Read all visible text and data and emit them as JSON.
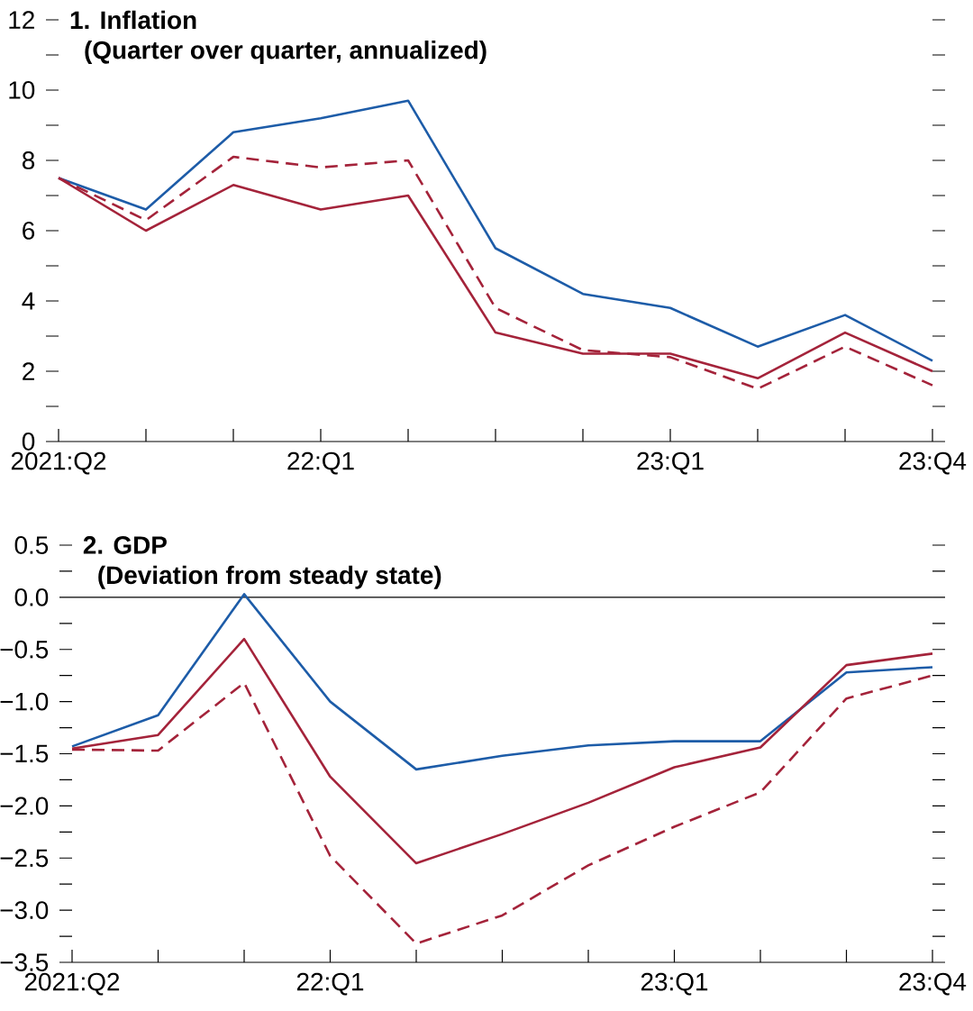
{
  "chart_data": [
    {
      "type": "line",
      "title": "1. Inflation",
      "subtitle": "(Quarter over quarter, annualized)",
      "categories": [
        "2021:Q2",
        null,
        null,
        "22:Q1",
        null,
        null,
        null,
        "23:Q1",
        null,
        null,
        "23:Q4"
      ],
      "series": [
        {
          "color": "#1d5ca8",
          "line_style": "solid",
          "values": [
            7.5,
            6.6,
            8.8,
            9.2,
            9.7,
            5.5,
            4.2,
            3.8,
            2.7,
            3.6,
            2.3
          ]
        },
        {
          "color": "#a4233a",
          "line_style": "solid",
          "values": [
            7.5,
            6.0,
            7.3,
            6.6,
            7.0,
            3.1,
            2.5,
            2.5,
            1.8,
            3.1,
            2.0
          ]
        },
        {
          "color": "#a4233a",
          "line_style": "dashed",
          "values": [
            7.5,
            6.3,
            8.1,
            7.8,
            8.0,
            3.8,
            2.6,
            2.4,
            1.5,
            2.7,
            1.6
          ]
        }
      ],
      "ylim": [
        0,
        12
      ],
      "yticks": [
        0,
        {
          "value": 1,
          "label": null
        },
        2,
        {
          "value": 3,
          "label": null
        },
        4,
        {
          "value": 5,
          "label": null
        },
        6,
        {
          "value": 7,
          "label": null
        },
        8,
        {
          "value": 9,
          "label": null
        },
        10,
        {
          "value": 11,
          "label": null
        },
        12
      ]
    },
    {
      "type": "line",
      "title": "2. GDP",
      "subtitle": "(Deviation from steady state)",
      "categories": [
        "2021:Q2",
        null,
        null,
        "22:Q1",
        null,
        null,
        null,
        "23:Q1",
        null,
        null,
        "23:Q4"
      ],
      "series": [
        {
          "color": "#1d5ca8",
          "line_style": "solid",
          "values": [
            -1.43,
            -1.13,
            0.03,
            -1.0,
            -1.65,
            -1.52,
            -1.42,
            -1.38,
            -1.38,
            -0.72,
            -0.67
          ]
        },
        {
          "color": "#a4233a",
          "line_style": "solid",
          "values": [
            -1.45,
            -1.32,
            -0.4,
            -1.72,
            -2.55,
            -2.27,
            -1.97,
            -1.63,
            -1.44,
            -0.65,
            -0.54
          ]
        },
        {
          "color": "#a4233a",
          "line_style": "dashed",
          "values": [
            -1.46,
            -1.47,
            -0.82,
            -2.48,
            -3.32,
            -3.05,
            -2.57,
            -2.2,
            -1.87,
            -0.97,
            -0.75
          ]
        }
      ],
      "ylim": [
        -3.5,
        0.5
      ],
      "yticks": [
        {
          "value": -3.5,
          "label": "−3.5"
        },
        {
          "value": -3.25,
          "label": null
        },
        {
          "value": -3.0,
          "label": "−3.0"
        },
        {
          "value": -2.75,
          "label": null
        },
        {
          "value": -2.5,
          "label": "−2.5"
        },
        {
          "value": -2.25,
          "label": null
        },
        {
          "value": -2.0,
          "label": "−2.0"
        },
        {
          "value": -1.75,
          "label": null
        },
        {
          "value": -1.5,
          "label": "−1.5"
        },
        {
          "value": -1.25,
          "label": null
        },
        {
          "value": -1.0,
          "label": "−1.0"
        },
        {
          "value": -0.75,
          "label": null
        },
        {
          "value": -0.5,
          "label": "−0.5"
        },
        {
          "value": -0.25,
          "label": null
        },
        {
          "value": 0.0,
          "label": "0.0"
        },
        {
          "value": 0.25,
          "label": null
        },
        {
          "value": 0.5,
          "label": "0.5"
        }
      ],
      "ref_lines": [
        {
          "axis": "y",
          "value": 0,
          "color": "#000000"
        }
      ]
    }
  ]
}
